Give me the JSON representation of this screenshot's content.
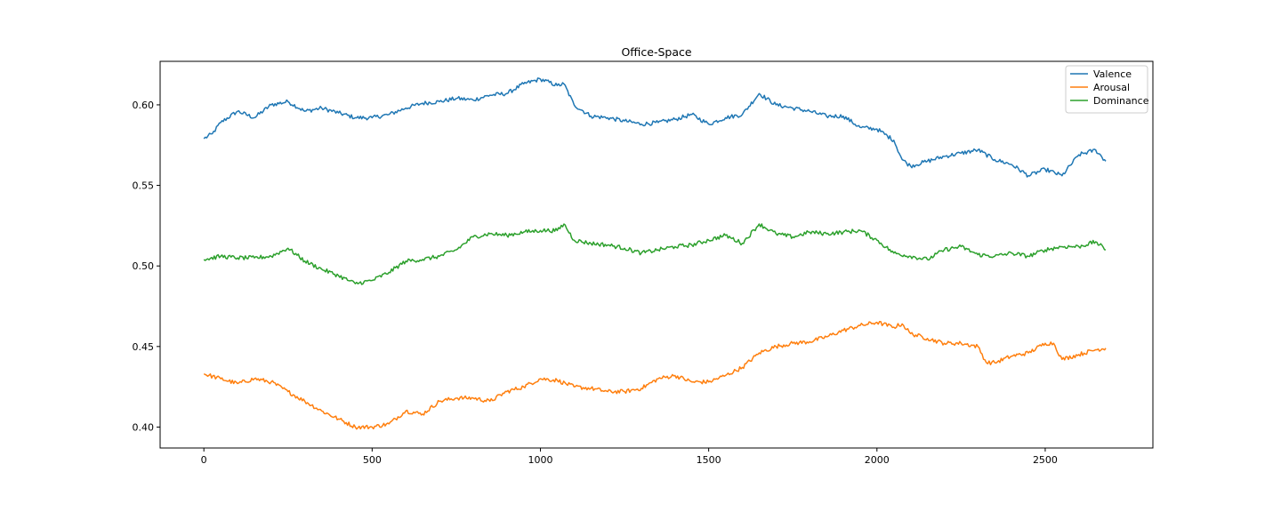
{
  "chart_data": {
    "type": "line",
    "title": "Office-Space",
    "xlabel": "",
    "ylabel": "",
    "xlim": [
      -130,
      2820
    ],
    "ylim": [
      0.387,
      0.627
    ],
    "xticks": [
      0,
      500,
      1000,
      1500,
      2000,
      2500
    ],
    "yticks": [
      0.4,
      0.45,
      0.5,
      0.55,
      0.6
    ],
    "xtick_labels": [
      "0",
      "500",
      "1000",
      "1500",
      "2000",
      "2500"
    ],
    "ytick_labels": [
      "0.40",
      "0.45",
      "0.50",
      "0.55",
      "0.60"
    ],
    "grid": false,
    "legend": "top-right",
    "series": [
      {
        "name": "Valence",
        "color": "#1f77b4",
        "x": [
          0,
          25,
          50,
          100,
          150,
          200,
          250,
          300,
          350,
          400,
          450,
          500,
          550,
          600,
          650,
          700,
          750,
          800,
          850,
          900,
          950,
          1000,
          1050,
          1070,
          1100,
          1150,
          1200,
          1250,
          1300,
          1350,
          1400,
          1450,
          1500,
          1550,
          1600,
          1650,
          1700,
          1750,
          1800,
          1850,
          1900,
          1950,
          2000,
          2050,
          2075,
          2100,
          2150,
          2200,
          2250,
          2300,
          2350,
          2400,
          2450,
          2500,
          2550,
          2600,
          2650,
          2680
        ],
        "values": [
          0.579,
          0.582,
          0.589,
          0.596,
          0.592,
          0.6,
          0.602,
          0.596,
          0.598,
          0.595,
          0.592,
          0.592,
          0.594,
          0.598,
          0.601,
          0.602,
          0.604,
          0.603,
          0.606,
          0.607,
          0.613,
          0.616,
          0.612,
          0.613,
          0.6,
          0.593,
          0.592,
          0.59,
          0.588,
          0.589,
          0.591,
          0.594,
          0.588,
          0.592,
          0.594,
          0.607,
          0.6,
          0.598,
          0.596,
          0.593,
          0.593,
          0.586,
          0.585,
          0.578,
          0.566,
          0.562,
          0.565,
          0.568,
          0.57,
          0.572,
          0.566,
          0.563,
          0.556,
          0.56,
          0.556,
          0.569,
          0.572,
          0.565
        ]
      },
      {
        "name": "Arousal",
        "color": "#ff7f0e",
        "x": [
          0,
          50,
          100,
          150,
          200,
          250,
          300,
          350,
          400,
          450,
          500,
          550,
          600,
          650,
          700,
          750,
          800,
          850,
          900,
          950,
          1000,
          1050,
          1100,
          1150,
          1200,
          1250,
          1300,
          1350,
          1400,
          1450,
          1500,
          1550,
          1600,
          1650,
          1700,
          1750,
          1800,
          1850,
          1900,
          1950,
          2000,
          2050,
          2075,
          2100,
          2150,
          2200,
          2250,
          2300,
          2325,
          2350,
          2400,
          2450,
          2500,
          2525,
          2550,
          2600,
          2650,
          2680
        ],
        "values": [
          0.433,
          0.43,
          0.427,
          0.43,
          0.428,
          0.422,
          0.416,
          0.41,
          0.405,
          0.4,
          0.4,
          0.402,
          0.41,
          0.408,
          0.416,
          0.418,
          0.418,
          0.416,
          0.422,
          0.425,
          0.43,
          0.429,
          0.425,
          0.424,
          0.422,
          0.422,
          0.424,
          0.43,
          0.432,
          0.428,
          0.428,
          0.432,
          0.437,
          0.446,
          0.45,
          0.452,
          0.453,
          0.456,
          0.46,
          0.463,
          0.465,
          0.462,
          0.464,
          0.458,
          0.455,
          0.452,
          0.452,
          0.45,
          0.44,
          0.44,
          0.444,
          0.446,
          0.452,
          0.452,
          0.442,
          0.445,
          0.448,
          0.449
        ]
      },
      {
        "name": "Dominance",
        "color": "#2ca02c",
        "x": [
          0,
          50,
          100,
          150,
          200,
          250,
          300,
          350,
          400,
          450,
          500,
          550,
          600,
          650,
          700,
          750,
          800,
          850,
          900,
          950,
          1000,
          1050,
          1070,
          1100,
          1150,
          1200,
          1250,
          1300,
          1350,
          1400,
          1450,
          1500,
          1550,
          1600,
          1650,
          1700,
          1750,
          1800,
          1850,
          1900,
          1950,
          2000,
          2050,
          2100,
          2150,
          2200,
          2250,
          2300,
          2350,
          2400,
          2450,
          2500,
          2550,
          2600,
          2650,
          2680
        ],
        "values": [
          0.504,
          0.506,
          0.505,
          0.505,
          0.506,
          0.511,
          0.503,
          0.498,
          0.494,
          0.489,
          0.491,
          0.496,
          0.503,
          0.504,
          0.506,
          0.51,
          0.518,
          0.52,
          0.519,
          0.521,
          0.522,
          0.522,
          0.526,
          0.516,
          0.514,
          0.513,
          0.511,
          0.508,
          0.51,
          0.512,
          0.513,
          0.516,
          0.519,
          0.514,
          0.526,
          0.52,
          0.518,
          0.521,
          0.52,
          0.521,
          0.522,
          0.516,
          0.508,
          0.506,
          0.504,
          0.51,
          0.512,
          0.507,
          0.506,
          0.508,
          0.506,
          0.51,
          0.512,
          0.512,
          0.515,
          0.51
        ]
      }
    ]
  }
}
